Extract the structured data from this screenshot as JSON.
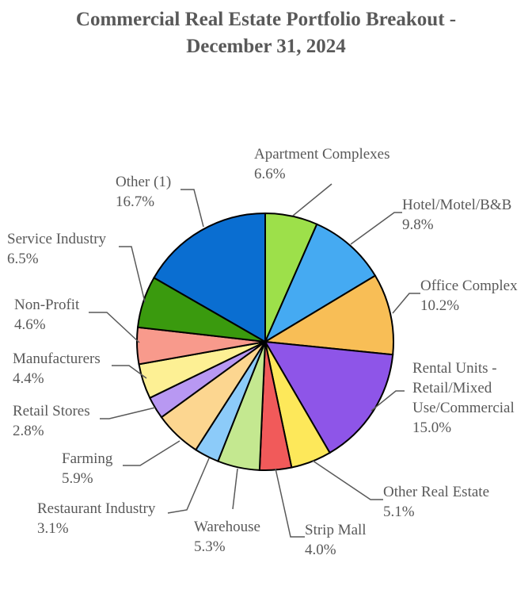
{
  "title_line1": "Commercial Real Estate Portfolio Breakout -",
  "title_line2": "December 31, 2024",
  "chart_data": {
    "type": "pie",
    "title": "Commercial Real Estate Portfolio Breakout - December 31, 2024",
    "start_angle_deg": 0,
    "direction": "clockwise",
    "slices": [
      {
        "label": "Apartment Complexes",
        "value": 6.6,
        "display": "6.6%",
        "color": "#9de04a"
      },
      {
        "label": "Hotel/Motel/B&B",
        "value": 9.8,
        "display": "9.8%",
        "color": "#45aaf2"
      },
      {
        "label": "Office Complex",
        "value": 10.2,
        "display": "10.2%",
        "color": "#f8be56"
      },
      {
        "label": "Rental Units - Retail/Mixed Use/Commercial",
        "label_lines": [
          "Rental Units -",
          "Retail/Mixed",
          "Use/Commercial"
        ],
        "value": 15.0,
        "display": "15.0%",
        "color": "#8e55e8"
      },
      {
        "label": "Other  Real Estate",
        "value": 5.1,
        "display": "5.1%",
        "color": "#fde85a"
      },
      {
        "label": "Strip Mall",
        "value": 4.0,
        "display": "4.0%",
        "color": "#f15a5a"
      },
      {
        "label": "Warehouse",
        "value": 5.3,
        "display": "5.3%",
        "color": "#c4e890"
      },
      {
        "label": "Restaurant Industry",
        "value": 3.1,
        "display": "3.1%",
        "color": "#8ccbf9"
      },
      {
        "label": "Farming",
        "value": 5.9,
        "display": "5.9%",
        "color": "#fcd690"
      },
      {
        "label": "Retail Stores",
        "value": 2.8,
        "display": "2.8%",
        "color": "#b898f2"
      },
      {
        "label": "Manufacturers",
        "value": 4.4,
        "display": "4.4%",
        "color": "#fdf094"
      },
      {
        "label": "Non-Profit",
        "value": 4.6,
        "display": "4.6%",
        "color": "#f89a8c"
      },
      {
        "label": "Service Industry",
        "value": 6.5,
        "display": "6.5%",
        "color": "#3a9a0e"
      },
      {
        "label": "Other (1)",
        "value": 16.7,
        "display": "16.7%",
        "color": "#0a6ed1"
      }
    ]
  }
}
